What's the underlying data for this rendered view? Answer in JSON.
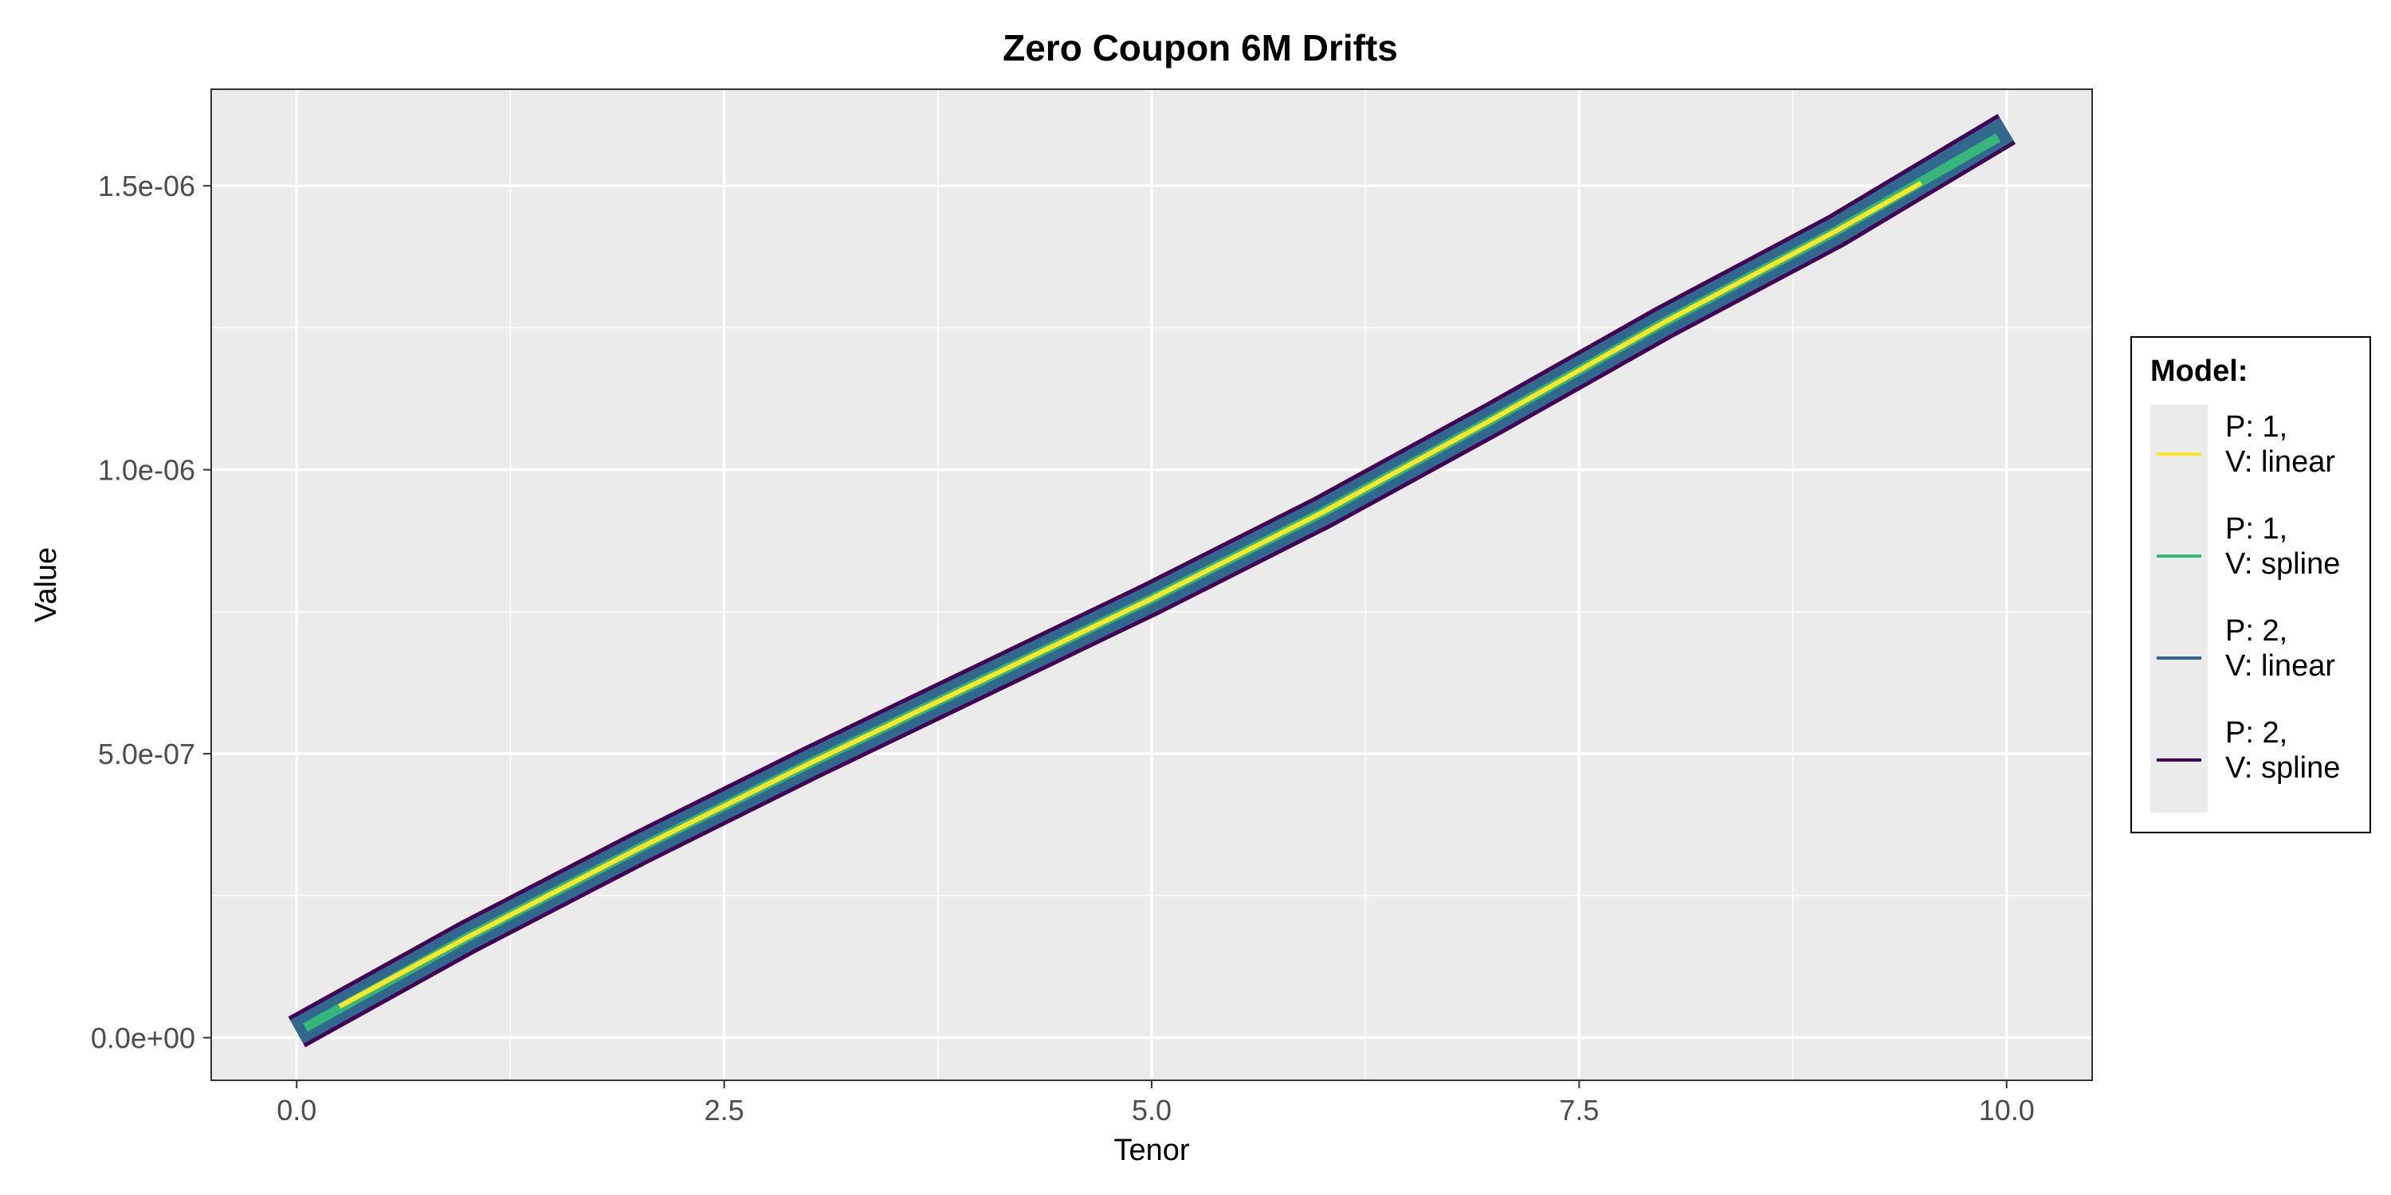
{
  "chart_data": {
    "type": "line",
    "title": "Zero Coupon 6M Drifts",
    "xlabel": "Tenor",
    "ylabel": "Value",
    "xlim": [
      -0.5,
      10.5
    ],
    "ylim": [
      -7.5e-08,
      1.67e-06
    ],
    "x_ticks": [
      0,
      2.5,
      5,
      7.5,
      10
    ],
    "x_tick_labels": [
      "0.0",
      "2.5",
      "5.0",
      "7.5",
      "10.0"
    ],
    "y_ticks": [
      0,
      5e-07,
      1e-06,
      1.5e-06
    ],
    "y_tick_labels": [
      "0.0e+00",
      "5.0e-07",
      "1.0e-06",
      "1.5e-06"
    ],
    "grid": true,
    "legend_position": "right",
    "legend_title": "Model:",
    "series": [
      {
        "name": "P: 1,\nV: linear",
        "line1": "P: 1,",
        "line2": "V: linear",
        "color": "#fde725",
        "width": 6,
        "x": [
          0.25,
          1.0,
          2.0,
          3.0,
          4.0,
          5.0,
          6.0,
          7.0,
          8.0,
          9.0,
          9.5
        ],
        "values": [
          5.5e-08,
          1.77e-07,
          3.33e-07,
          4.83e-07,
          6.28e-07,
          7.73e-07,
          9.25e-07,
          1.09e-06,
          1.26e-06,
          1.42e-06,
          1.505e-06
        ]
      },
      {
        "name": "P: 1,\nV: spline",
        "line1": "P: 1,",
        "line2": "V: spline",
        "color": "#35b779",
        "width": 12,
        "x": [
          0.05,
          1.0,
          2.0,
          3.0,
          4.0,
          5.0,
          6.0,
          7.0,
          8.0,
          9.0,
          9.95
        ],
        "values": [
          1.8e-08,
          1.77e-07,
          3.33e-07,
          4.83e-07,
          6.28e-07,
          7.73e-07,
          9.25e-07,
          1.09e-06,
          1.26e-06,
          1.42e-06,
          1.585e-06
        ]
      },
      {
        "name": "P: 2,\nV: linear",
        "line1": "P: 2,",
        "line2": "V: linear",
        "color": "#31688e",
        "width": 34,
        "x": [
          0.0,
          1.0,
          2.0,
          3.0,
          4.0,
          5.0,
          6.0,
          7.0,
          8.0,
          9.0,
          10.0
        ],
        "values": [
          1e-08,
          1.77e-07,
          3.33e-07,
          4.83e-07,
          6.28e-07,
          7.73e-07,
          9.25e-07,
          1.09e-06,
          1.26e-06,
          1.42e-06,
          1.6e-06
        ]
      },
      {
        "name": "P: 2,\nV: spline",
        "line1": "P: 2,",
        "line2": "V: spline",
        "color": "#440154",
        "width": 44,
        "x": [
          0.0,
          1.0,
          2.0,
          3.0,
          4.0,
          5.0,
          6.0,
          7.0,
          8.0,
          9.0,
          10.0
        ],
        "values": [
          1e-08,
          1.77e-07,
          3.33e-07,
          4.83e-07,
          6.28e-07,
          7.73e-07,
          9.25e-07,
          1.09e-06,
          1.26e-06,
          1.42e-06,
          1.6e-06
        ]
      }
    ]
  }
}
